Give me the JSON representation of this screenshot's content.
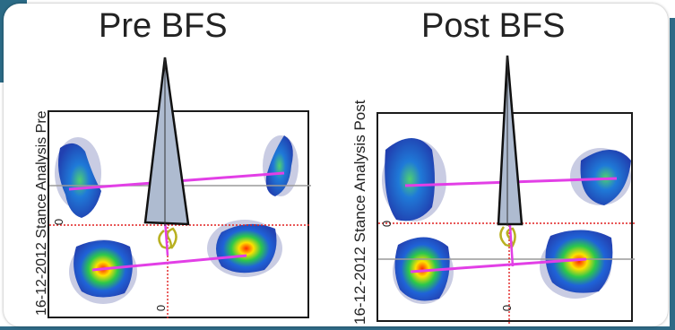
{
  "slide": {
    "title_pre": "Pre BFS",
    "title_post": "Post BFS",
    "label_pre": "16-12-2012 Stance Analysis Pre",
    "label_post": "16-12-2012 Stance Analysis Post",
    "zero_label": "0"
  },
  "colors": {
    "accent": "#2b6b86",
    "trajectory": "#e23fe6",
    "zero_line": "#e02020",
    "wedge_fill": "#aebbd0",
    "cop_trace": "#b8b020"
  },
  "icons": [
    "pressure-heatmap-icon",
    "force-wedge-icon"
  ]
}
